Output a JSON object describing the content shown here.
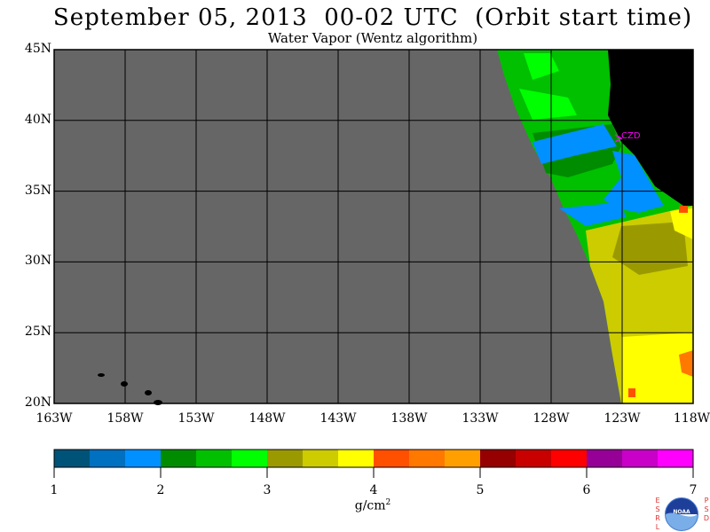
{
  "title": "September 05, 2013  00-02 UTC  (Orbit start time)",
  "subtitle": "Water Vapor (Wentz algorithm)",
  "map": {
    "lat_labels": [
      "45N",
      "40N",
      "35N",
      "30N",
      "25N",
      "20N"
    ],
    "lon_labels": [
      "163W",
      "158W",
      "153W",
      "148W",
      "143W",
      "138W",
      "133W",
      "128W",
      "123W",
      "118W"
    ],
    "station_label": "CZD",
    "colors": {
      "no_data": "#666666",
      "land": "#000000",
      "grid": "#000000",
      "station": "#ff00ff"
    }
  },
  "colorbar": {
    "ticks": [
      "1",
      "2",
      "3",
      "4",
      "5",
      "6",
      "7"
    ],
    "unit": "g/cm",
    "unit_exp": "2",
    "colors": [
      "#005378",
      "#0070c0",
      "#0090ff",
      "#008c00",
      "#00c000",
      "#00ff00",
      "#9a9a00",
      "#cccc00",
      "#ffff00",
      "#ff5000",
      "#ff7800",
      "#ffa000",
      "#960000",
      "#c80000",
      "#ff0000",
      "#960096",
      "#c800c8",
      "#ff00ff"
    ]
  },
  "logo": {
    "left_letters": "ESRL",
    "right_letters": "PSD",
    "badge": "NOAA"
  }
}
